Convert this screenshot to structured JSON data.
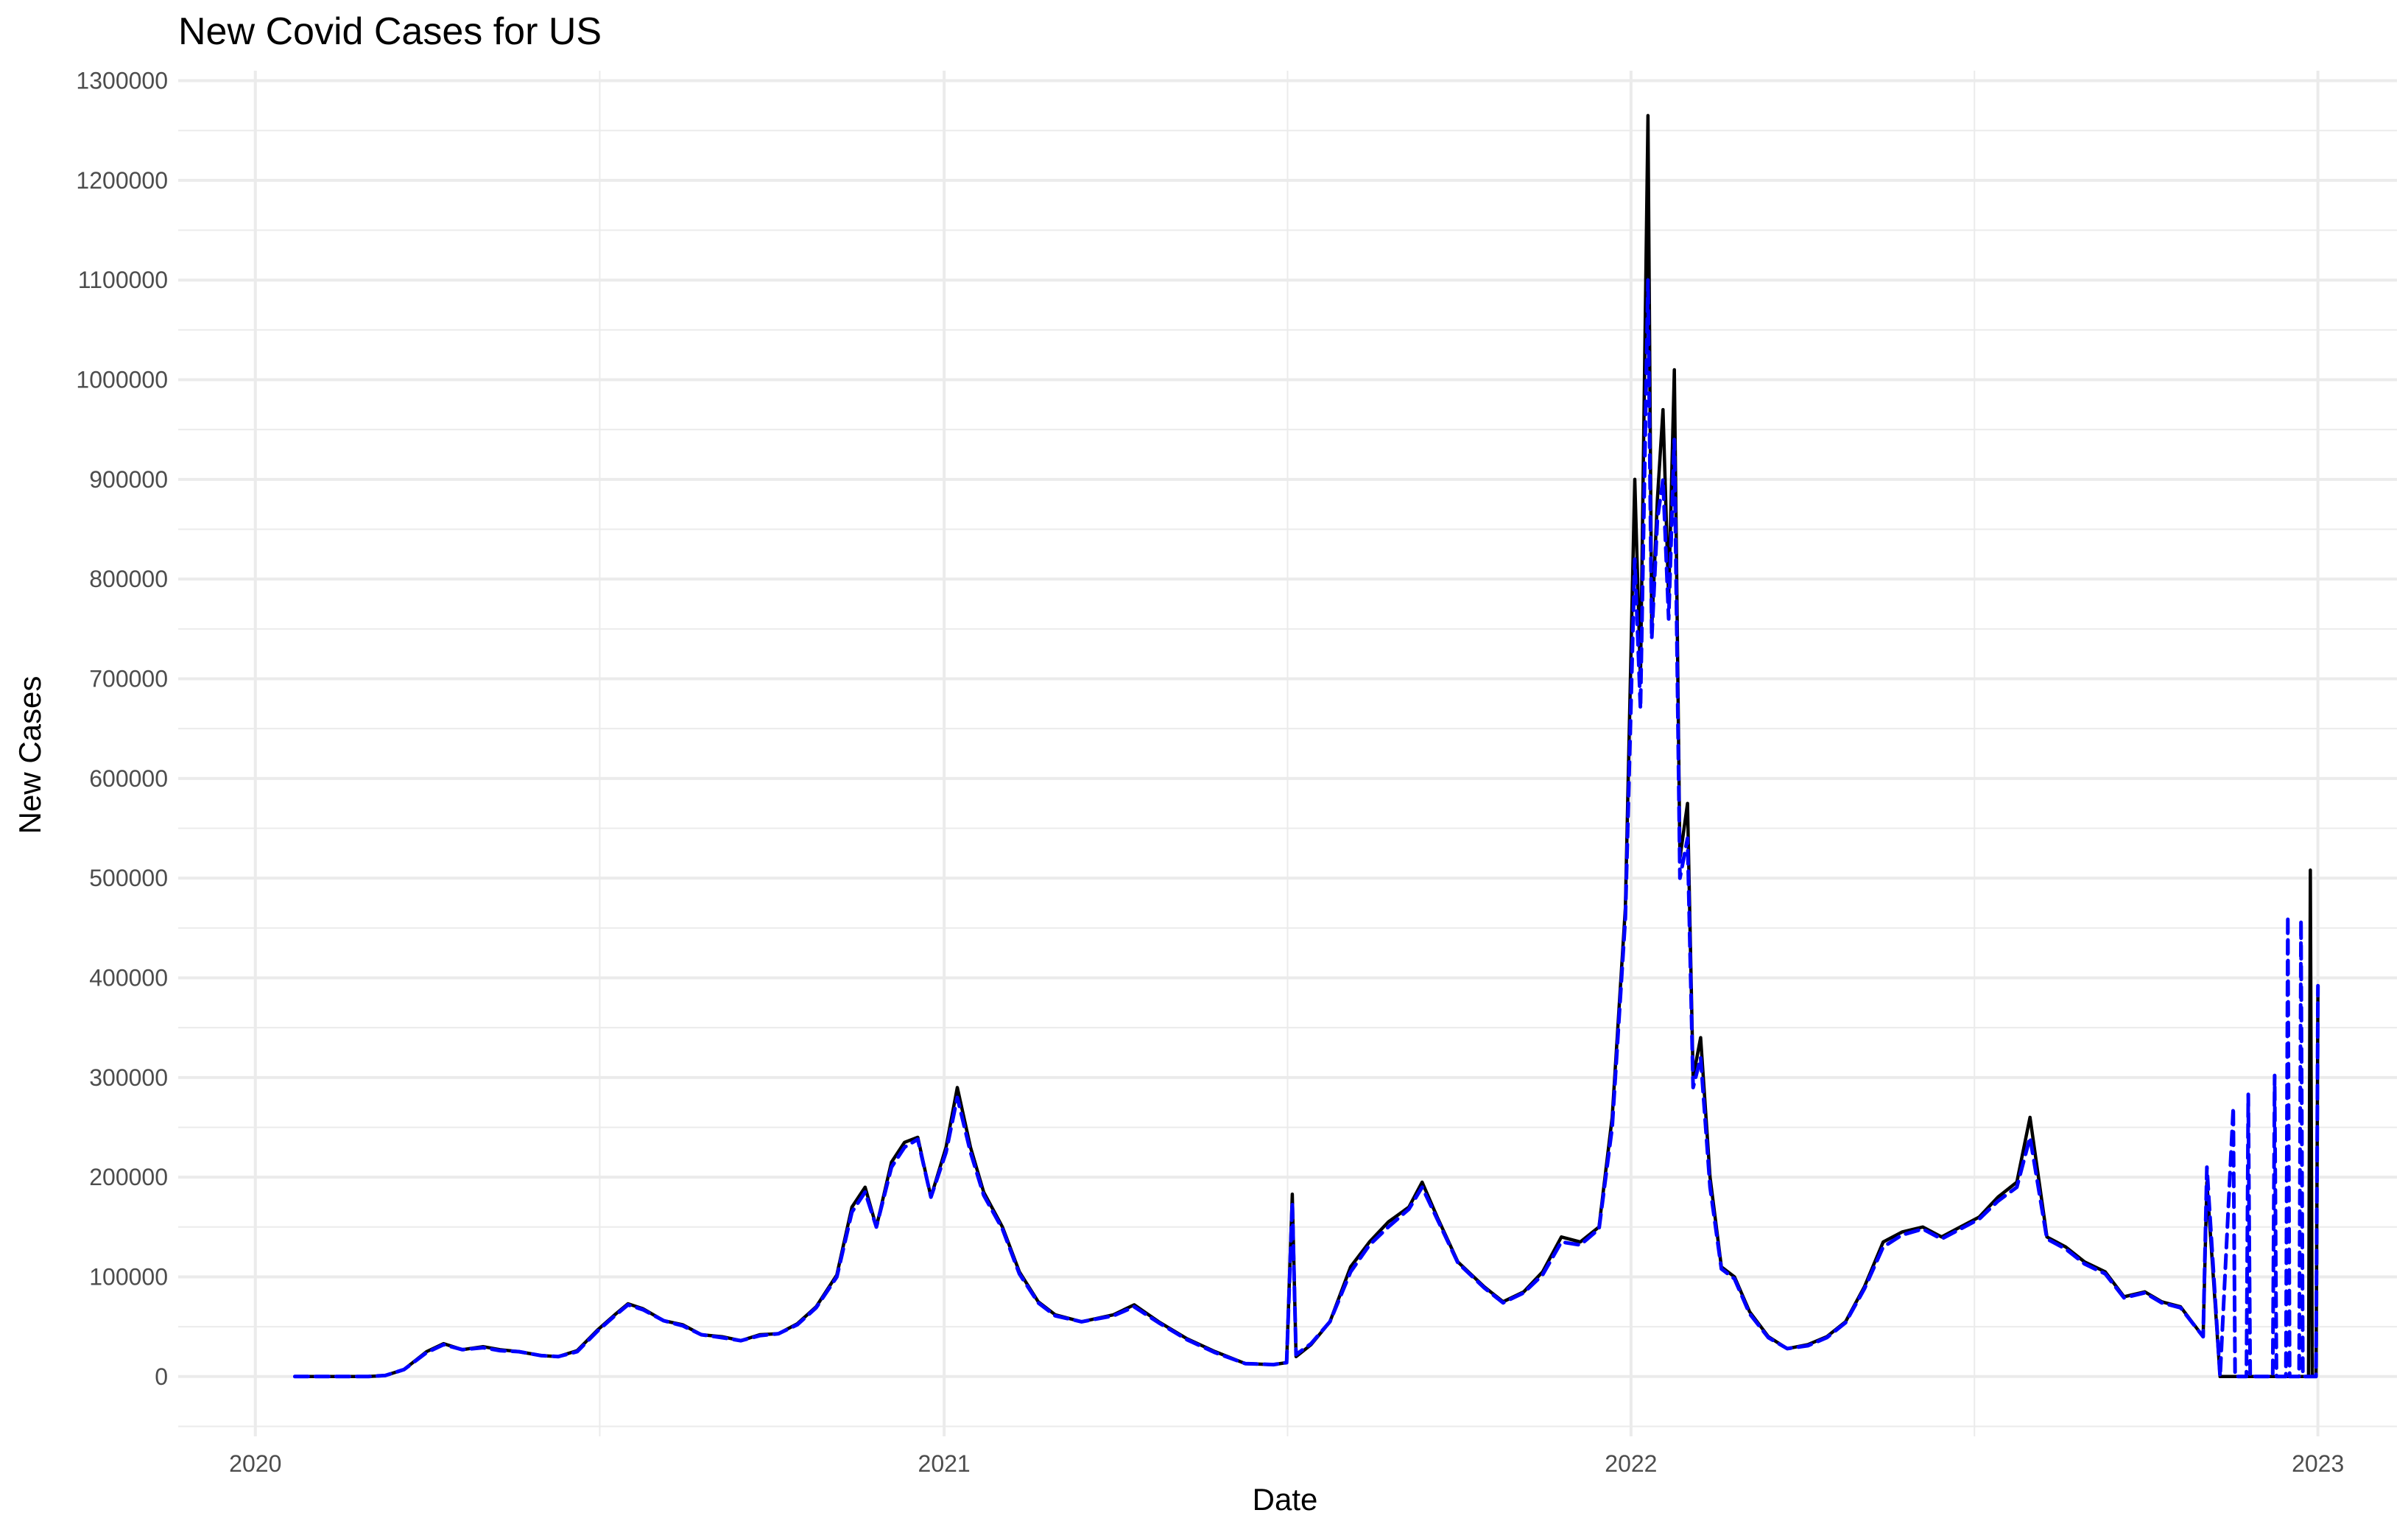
{
  "chart_data": {
    "type": "line",
    "title": "New Covid Cases for US",
    "xlabel": "Date",
    "ylabel": "New Cases",
    "x_range": [
      "2019-11-21",
      "2023-02-12"
    ],
    "ylim": [
      -60000,
      1310000
    ],
    "y_ticks": [
      0,
      100000,
      200000,
      300000,
      400000,
      500000,
      600000,
      700000,
      800000,
      900000,
      1000000,
      1100000,
      1200000,
      1300000
    ],
    "y_tick_labels": [
      "0",
      "100000",
      "200000",
      "300000",
      "400000",
      "500000",
      "600000",
      "700000",
      "800000",
      "900000",
      "1000000",
      "1100000",
      "1200000",
      "1300000"
    ],
    "x_ticks": [
      "2020-01-01",
      "2021-01-01",
      "2022-01-01",
      "2023-01-01"
    ],
    "x_tick_labels": [
      "2020",
      "2021",
      "2022",
      "2023"
    ],
    "grid": true,
    "legend": "none",
    "series": [
      {
        "style": "solid",
        "color": "#000000",
        "points": [
          [
            "2020-01-22",
            0
          ],
          [
            "2020-03-01",
            0
          ],
          [
            "2020-03-10",
            1000
          ],
          [
            "2020-03-20",
            7000
          ],
          [
            "2020-04-01",
            25000
          ],
          [
            "2020-04-10",
            33000
          ],
          [
            "2020-04-20",
            27000
          ],
          [
            "2020-05-01",
            30000
          ],
          [
            "2020-05-10",
            27000
          ],
          [
            "2020-05-20",
            25000
          ],
          [
            "2020-06-01",
            21000
          ],
          [
            "2020-06-10",
            20000
          ],
          [
            "2020-06-20",
            26000
          ],
          [
            "2020-07-01",
            47000
          ],
          [
            "2020-07-10",
            62000
          ],
          [
            "2020-07-17",
            73000
          ],
          [
            "2020-07-25",
            68000
          ],
          [
            "2020-08-05",
            56000
          ],
          [
            "2020-08-15",
            52000
          ],
          [
            "2020-08-25",
            42000
          ],
          [
            "2020-09-05",
            40000
          ],
          [
            "2020-09-15",
            36000
          ],
          [
            "2020-09-25",
            42000
          ],
          [
            "2020-10-05",
            43000
          ],
          [
            "2020-10-15",
            53000
          ],
          [
            "2020-10-25",
            70000
          ],
          [
            "2020-11-05",
            102000
          ],
          [
            "2020-11-13",
            170000
          ],
          [
            "2020-11-20",
            190000
          ],
          [
            "2020-11-26",
            150000
          ],
          [
            "2020-12-04",
            215000
          ],
          [
            "2020-12-11",
            235000
          ],
          [
            "2020-12-18",
            240000
          ],
          [
            "2020-12-25",
            180000
          ],
          [
            "2021-01-02",
            230000
          ],
          [
            "2021-01-08",
            290000
          ],
          [
            "2021-01-15",
            230000
          ],
          [
            "2021-01-22",
            185000
          ],
          [
            "2021-02-01",
            150000
          ],
          [
            "2021-02-10",
            105000
          ],
          [
            "2021-02-20",
            75000
          ],
          [
            "2021-03-01",
            62000
          ],
          [
            "2021-03-15",
            55000
          ],
          [
            "2021-04-01",
            62000
          ],
          [
            "2021-04-12",
            72000
          ],
          [
            "2021-04-25",
            55000
          ],
          [
            "2021-05-10",
            38000
          ],
          [
            "2021-05-25",
            25000
          ],
          [
            "2021-06-10",
            13000
          ],
          [
            "2021-06-25",
            12000
          ],
          [
            "2021-07-02",
            14000
          ],
          [
            "2021-07-05",
            183000
          ],
          [
            "2021-07-07",
            20000
          ],
          [
            "2021-07-15",
            32000
          ],
          [
            "2021-07-25",
            55000
          ],
          [
            "2021-08-05",
            110000
          ],
          [
            "2021-08-15",
            135000
          ],
          [
            "2021-08-25",
            155000
          ],
          [
            "2021-09-05",
            170000
          ],
          [
            "2021-09-12",
            195000
          ],
          [
            "2021-09-20",
            160000
          ],
          [
            "2021-10-01",
            115000
          ],
          [
            "2021-10-15",
            90000
          ],
          [
            "2021-10-25",
            75000
          ],
          [
            "2021-11-05",
            85000
          ],
          [
            "2021-11-15",
            105000
          ],
          [
            "2021-11-25",
            140000
          ],
          [
            "2021-12-05",
            135000
          ],
          [
            "2021-12-15",
            150000
          ],
          [
            "2021-12-22",
            260000
          ],
          [
            "2021-12-29",
            470000
          ],
          [
            "2022-01-03",
            900000
          ],
          [
            "2022-01-06",
            700000
          ],
          [
            "2022-01-10",
            1265000
          ],
          [
            "2022-01-12",
            750000
          ],
          [
            "2022-01-15",
            880000
          ],
          [
            "2022-01-18",
            970000
          ],
          [
            "2022-01-21",
            780000
          ],
          [
            "2022-01-24",
            1010000
          ],
          [
            "2022-01-27",
            520000
          ],
          [
            "2022-01-31",
            575000
          ],
          [
            "2022-02-03",
            300000
          ],
          [
            "2022-02-07",
            340000
          ],
          [
            "2022-02-12",
            200000
          ],
          [
            "2022-02-18",
            110000
          ],
          [
            "2022-02-25",
            100000
          ],
          [
            "2022-03-05",
            65000
          ],
          [
            "2022-03-15",
            40000
          ],
          [
            "2022-03-25",
            28000
          ],
          [
            "2022-04-05",
            32000
          ],
          [
            "2022-04-15",
            40000
          ],
          [
            "2022-04-25",
            55000
          ],
          [
            "2022-05-05",
            90000
          ],
          [
            "2022-05-15",
            135000
          ],
          [
            "2022-05-25",
            145000
          ],
          [
            "2022-06-05",
            150000
          ],
          [
            "2022-06-15",
            140000
          ],
          [
            "2022-06-25",
            150000
          ],
          [
            "2022-07-05",
            160000
          ],
          [
            "2022-07-15",
            180000
          ],
          [
            "2022-07-25",
            195000
          ],
          [
            "2022-08-01",
            260000
          ],
          [
            "2022-08-10",
            140000
          ],
          [
            "2022-08-20",
            130000
          ],
          [
            "2022-08-30",
            115000
          ],
          [
            "2022-09-10",
            105000
          ],
          [
            "2022-09-20",
            80000
          ],
          [
            "2022-10-01",
            85000
          ],
          [
            "2022-10-10",
            75000
          ],
          [
            "2022-10-20",
            70000
          ],
          [
            "2022-11-01",
            40000
          ],
          [
            "2022-11-03",
            195000
          ],
          [
            "2022-11-10",
            0
          ],
          [
            "2022-12-01",
            0
          ],
          [
            "2022-12-27",
            0
          ],
          [
            "2022-12-28",
            508000
          ],
          [
            "2022-12-29",
            0
          ],
          [
            "2022-12-31",
            0
          ],
          [
            "2023-01-01",
            390000
          ]
        ]
      },
      {
        "style": "dashed",
        "color": "#0000ff",
        "points": [
          [
            "2020-01-22",
            0
          ],
          [
            "2020-03-01",
            0
          ],
          [
            "2020-03-10",
            1000
          ],
          [
            "2020-03-20",
            7000
          ],
          [
            "2020-04-01",
            24000
          ],
          [
            "2020-04-10",
            32000
          ],
          [
            "2020-04-20",
            27000
          ],
          [
            "2020-05-01",
            29000
          ],
          [
            "2020-05-10",
            26000
          ],
          [
            "2020-05-20",
            25000
          ],
          [
            "2020-06-01",
            21000
          ],
          [
            "2020-06-10",
            20000
          ],
          [
            "2020-06-20",
            25000
          ],
          [
            "2020-07-01",
            46000
          ],
          [
            "2020-07-10",
            61000
          ],
          [
            "2020-07-17",
            72000
          ],
          [
            "2020-07-25",
            67000
          ],
          [
            "2020-08-05",
            56000
          ],
          [
            "2020-08-15",
            51000
          ],
          [
            "2020-08-25",
            42000
          ],
          [
            "2020-09-05",
            39000
          ],
          [
            "2020-09-15",
            36000
          ],
          [
            "2020-09-25",
            41000
          ],
          [
            "2020-10-05",
            43000
          ],
          [
            "2020-10-15",
            52000
          ],
          [
            "2020-10-25",
            69000
          ],
          [
            "2020-11-05",
            100000
          ],
          [
            "2020-11-13",
            165000
          ],
          [
            "2020-11-20",
            185000
          ],
          [
            "2020-11-26",
            150000
          ],
          [
            "2020-12-04",
            210000
          ],
          [
            "2020-12-11",
            230000
          ],
          [
            "2020-12-18",
            238000
          ],
          [
            "2020-12-25",
            180000
          ],
          [
            "2021-01-02",
            225000
          ],
          [
            "2021-01-08",
            280000
          ],
          [
            "2021-01-15",
            225000
          ],
          [
            "2021-01-22",
            182000
          ],
          [
            "2021-02-01",
            148000
          ],
          [
            "2021-02-10",
            103000
          ],
          [
            "2021-02-20",
            74000
          ],
          [
            "2021-03-01",
            61000
          ],
          [
            "2021-03-15",
            55000
          ],
          [
            "2021-04-01",
            61000
          ],
          [
            "2021-04-12",
            70000
          ],
          [
            "2021-04-25",
            54000
          ],
          [
            "2021-05-10",
            37000
          ],
          [
            "2021-05-25",
            24000
          ],
          [
            "2021-06-10",
            13000
          ],
          [
            "2021-06-25",
            12000
          ],
          [
            "2021-07-02",
            14000
          ],
          [
            "2021-07-05",
            175000
          ],
          [
            "2021-07-07",
            22000
          ],
          [
            "2021-07-15",
            33000
          ],
          [
            "2021-07-25",
            55000
          ],
          [
            "2021-08-05",
            105000
          ],
          [
            "2021-08-15",
            132000
          ],
          [
            "2021-08-25",
            150000
          ],
          [
            "2021-09-05",
            168000
          ],
          [
            "2021-09-12",
            190000
          ],
          [
            "2021-09-20",
            158000
          ],
          [
            "2021-10-01",
            114000
          ],
          [
            "2021-10-15",
            89000
          ],
          [
            "2021-10-25",
            74000
          ],
          [
            "2021-11-05",
            84000
          ],
          [
            "2021-11-15",
            102000
          ],
          [
            "2021-11-25",
            135000
          ],
          [
            "2021-12-05",
            132000
          ],
          [
            "2021-12-15",
            148000
          ],
          [
            "2021-12-22",
            250000
          ],
          [
            "2021-12-29",
            460000
          ],
          [
            "2022-01-03",
            820000
          ],
          [
            "2022-01-06",
            670000
          ],
          [
            "2022-01-10",
            1100000
          ],
          [
            "2022-01-12",
            740000
          ],
          [
            "2022-01-15",
            860000
          ],
          [
            "2022-01-18",
            900000
          ],
          [
            "2022-01-21",
            760000
          ],
          [
            "2022-01-24",
            940000
          ],
          [
            "2022-01-27",
            500000
          ],
          [
            "2022-01-31",
            540000
          ],
          [
            "2022-02-03",
            290000
          ],
          [
            "2022-02-07",
            320000
          ],
          [
            "2022-02-12",
            190000
          ],
          [
            "2022-02-18",
            108000
          ],
          [
            "2022-02-25",
            98000
          ],
          [
            "2022-03-05",
            63000
          ],
          [
            "2022-03-15",
            39000
          ],
          [
            "2022-03-25",
            28000
          ],
          [
            "2022-04-05",
            31000
          ],
          [
            "2022-04-15",
            39000
          ],
          [
            "2022-04-25",
            54000
          ],
          [
            "2022-05-05",
            88000
          ],
          [
            "2022-05-15",
            130000
          ],
          [
            "2022-05-25",
            142000
          ],
          [
            "2022-06-05",
            148000
          ],
          [
            "2022-06-15",
            138000
          ],
          [
            "2022-06-25",
            148000
          ],
          [
            "2022-07-05",
            158000
          ],
          [
            "2022-07-15",
            176000
          ],
          [
            "2022-07-25",
            190000
          ],
          [
            "2022-08-01",
            240000
          ],
          [
            "2022-08-10",
            138000
          ],
          [
            "2022-08-20",
            128000
          ],
          [
            "2022-08-30",
            113000
          ],
          [
            "2022-09-10",
            103000
          ],
          [
            "2022-09-20",
            79000
          ],
          [
            "2022-10-01",
            84000
          ],
          [
            "2022-10-10",
            74000
          ],
          [
            "2022-10-20",
            69000
          ],
          [
            "2022-11-01",
            40000
          ],
          [
            "2022-11-03",
            210000
          ],
          [
            "2022-11-10",
            0
          ],
          [
            "2022-11-17",
            270000
          ],
          [
            "2022-11-18",
            0
          ],
          [
            "2022-11-24",
            0
          ],
          [
            "2022-11-25",
            283000
          ],
          [
            "2022-11-26",
            0
          ],
          [
            "2022-12-08",
            0
          ],
          [
            "2022-12-09",
            302000
          ],
          [
            "2022-12-10",
            0
          ],
          [
            "2022-12-15",
            0
          ],
          [
            "2022-12-16",
            462000
          ],
          [
            "2022-12-17",
            0
          ],
          [
            "2022-12-22",
            0
          ],
          [
            "2022-12-23",
            458000
          ],
          [
            "2022-12-24",
            0
          ],
          [
            "2022-12-31",
            0
          ],
          [
            "2023-01-01",
            392000
          ]
        ]
      }
    ]
  }
}
